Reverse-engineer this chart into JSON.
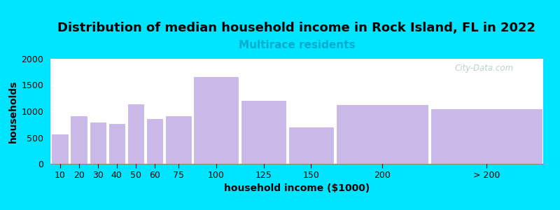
{
  "title": "Distribution of median household income in Rock Island, FL in 2022",
  "subtitle": "Multirace residents",
  "xlabel": "household income ($1000)",
  "ylabel": "households",
  "categories": [
    "10",
    "20",
    "30",
    "40",
    "50",
    "60",
    "75",
    "100",
    "125",
    "150",
    "200",
    "> 200"
  ],
  "values": [
    580,
    920,
    800,
    780,
    1150,
    870,
    920,
    1670,
    1210,
    710,
    1140,
    1050
  ],
  "bar_color": "#c9b8e8",
  "bar_edge_color": "#ffffff",
  "bg_outer": "#00e5ff",
  "bg_plot_left": "#dff5e8",
  "bg_plot_right": "#f8f8f8",
  "title_fontsize": 13,
  "subtitle_fontsize": 11,
  "subtitle_color": "#00aacc",
  "axis_label_fontsize": 10,
  "tick_fontsize": 9,
  "ylim": [
    0,
    2000
  ],
  "yticks": [
    0,
    500,
    1000,
    1500,
    2000
  ],
  "watermark_text": "City-Data.com",
  "watermark_color": "#b0c8c8",
  "bar_left_edges": [
    0,
    10,
    20,
    30,
    40,
    50,
    60,
    75,
    100,
    125,
    150,
    200
  ],
  "bar_right_edges": [
    10,
    20,
    30,
    40,
    50,
    60,
    75,
    100,
    125,
    150,
    200,
    260
  ],
  "xlim": [
    0,
    260
  ]
}
